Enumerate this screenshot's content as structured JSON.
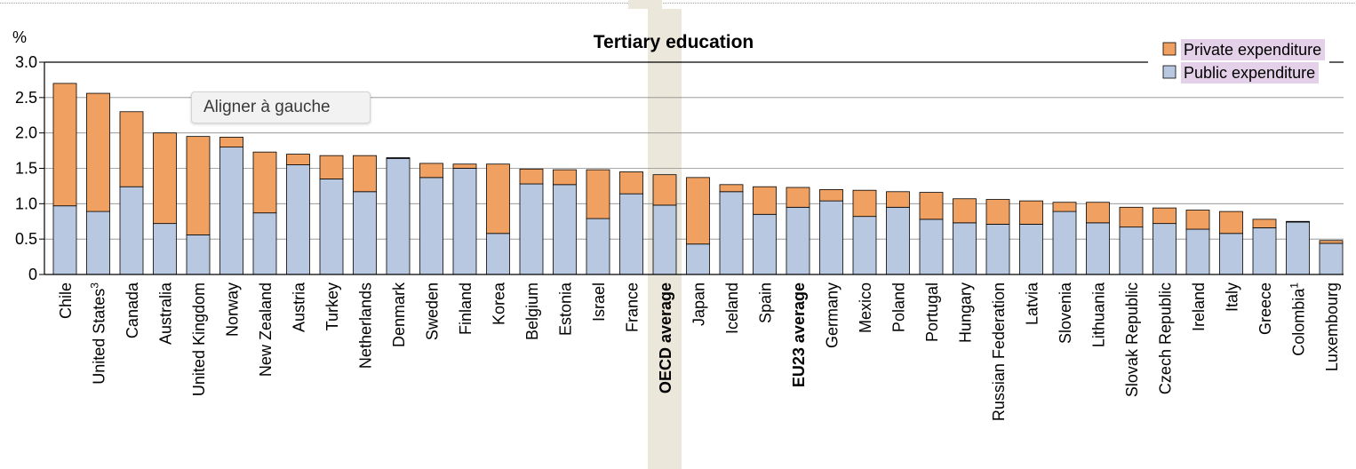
{
  "chart_data": {
    "type": "bar",
    "stacked": true,
    "title": "Tertiary education",
    "ylabel": "%",
    "ylim": [
      0,
      3.0
    ],
    "yticks": [
      "0",
      "0.5",
      "1.0",
      "1.5",
      "2.0",
      "2.5",
      "3.0"
    ],
    "legend_position": "top-right",
    "grid": true,
    "categories": [
      {
        "label": "Chile",
        "sup": ""
      },
      {
        "label": "United States",
        "sup": "3"
      },
      {
        "label": "Canada",
        "sup": ""
      },
      {
        "label": "Australia",
        "sup": ""
      },
      {
        "label": "United Kingdom",
        "sup": ""
      },
      {
        "label": "Norway",
        "sup": ""
      },
      {
        "label": "New Zealand",
        "sup": ""
      },
      {
        "label": "Austria",
        "sup": ""
      },
      {
        "label": "Turkey",
        "sup": ""
      },
      {
        "label": "Netherlands",
        "sup": ""
      },
      {
        "label": "Denmark",
        "sup": ""
      },
      {
        "label": "Sweden",
        "sup": ""
      },
      {
        "label": "Finland",
        "sup": ""
      },
      {
        "label": "Korea",
        "sup": ""
      },
      {
        "label": "Belgium",
        "sup": ""
      },
      {
        "label": "Estonia",
        "sup": ""
      },
      {
        "label": "Israel",
        "sup": ""
      },
      {
        "label": "France",
        "sup": ""
      },
      {
        "label": "OECD average",
        "sup": "",
        "bold": true,
        "highlight": true
      },
      {
        "label": "Japan",
        "sup": ""
      },
      {
        "label": "Iceland",
        "sup": ""
      },
      {
        "label": "Spain",
        "sup": ""
      },
      {
        "label": "EU23 average",
        "sup": "",
        "bold": true
      },
      {
        "label": "Germany",
        "sup": ""
      },
      {
        "label": "Mexico",
        "sup": ""
      },
      {
        "label": "Poland",
        "sup": ""
      },
      {
        "label": "Portugal",
        "sup": ""
      },
      {
        "label": "Hungary",
        "sup": ""
      },
      {
        "label": "Russian Federation",
        "sup": ""
      },
      {
        "label": "Latvia",
        "sup": ""
      },
      {
        "label": "Slovenia",
        "sup": ""
      },
      {
        "label": "Lithuania",
        "sup": ""
      },
      {
        "label": "Slovak Republic",
        "sup": ""
      },
      {
        "label": "Czech Republic",
        "sup": ""
      },
      {
        "label": "Ireland",
        "sup": ""
      },
      {
        "label": "Italy",
        "sup": ""
      },
      {
        "label": "Greece",
        "sup": ""
      },
      {
        "label": "Colombia",
        "sup": "1"
      },
      {
        "label": "Luxembourg",
        "sup": ""
      }
    ],
    "series": [
      {
        "name": "Public expenditure",
        "color": "#b8c8e0",
        "values": [
          0.97,
          0.89,
          1.24,
          0.72,
          0.56,
          1.8,
          0.87,
          1.55,
          1.35,
          1.17,
          1.64,
          1.37,
          1.5,
          0.58,
          1.28,
          1.27,
          0.79,
          1.14,
          0.98,
          0.43,
          1.17,
          0.85,
          0.95,
          1.04,
          0.82,
          0.95,
          0.78,
          0.73,
          0.71,
          0.71,
          0.89,
          0.73,
          0.67,
          0.72,
          0.64,
          0.58,
          0.66,
          0.74,
          0.44
        ]
      },
      {
        "name": "Private expenditure",
        "color": "#f0a162",
        "values": [
          1.73,
          1.67,
          1.06,
          1.28,
          1.39,
          0.14,
          0.86,
          0.15,
          0.33,
          0.51,
          0.01,
          0.2,
          0.06,
          0.98,
          0.21,
          0.21,
          0.69,
          0.31,
          0.43,
          0.94,
          0.1,
          0.39,
          0.28,
          0.16,
          0.37,
          0.22,
          0.38,
          0.34,
          0.35,
          0.33,
          0.13,
          0.29,
          0.28,
          0.22,
          0.27,
          0.31,
          0.12,
          0.01,
          0.04
        ]
      }
    ],
    "legend": {
      "private_label": "Private expenditure",
      "public_label": "Public expenditure",
      "label_highlight_color": "#e4d0e8"
    },
    "highlight_color": "#ebe7da"
  },
  "tooltip": {
    "text": "Aligner à gauche"
  }
}
